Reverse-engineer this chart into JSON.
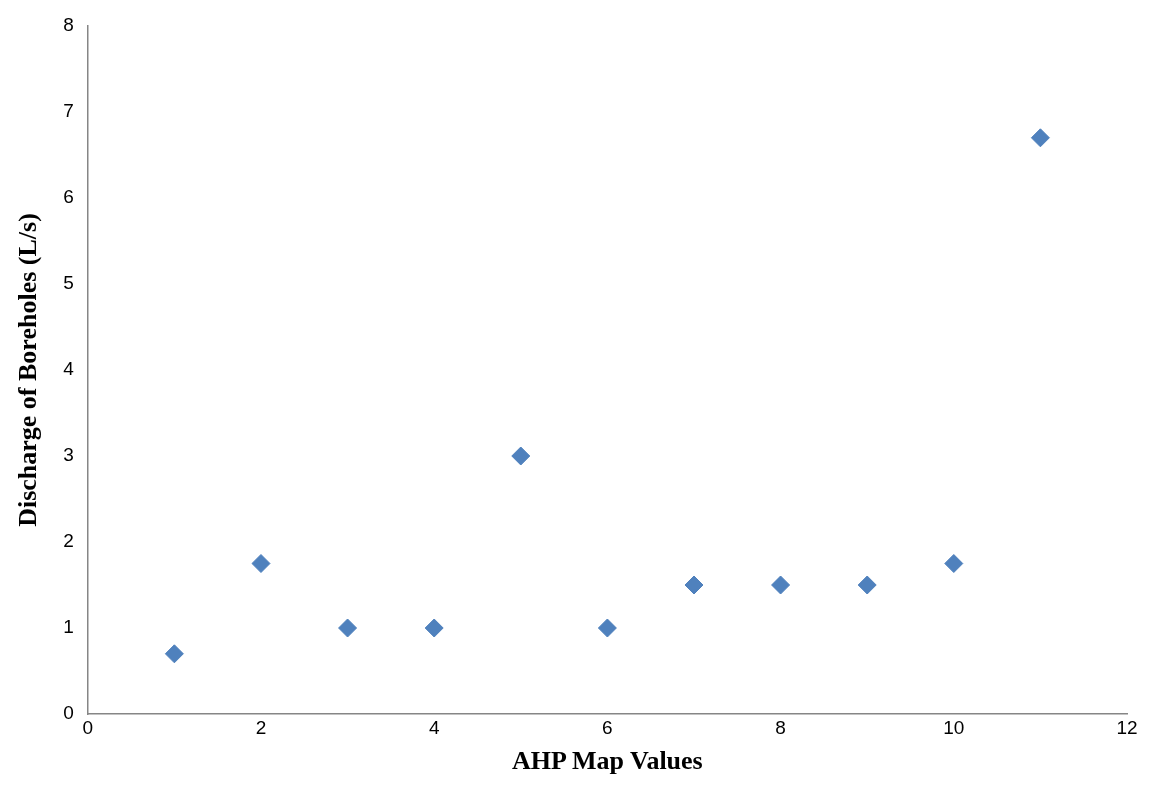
{
  "chart_data": {
    "type": "scatter",
    "xlabel": "AHP Map Values",
    "ylabel": "Discharge of Boreholes (L/s)",
    "x": [
      1,
      2,
      3,
      4,
      5,
      6,
      7,
      8,
      9,
      10,
      11
    ],
    "series": [
      {
        "color": "#4f81bd",
        "values": [
          0.7,
          1.75,
          1,
          1,
          3,
          1,
          1.5,
          1.5,
          1.5,
          1.75,
          6.7
        ]
      }
    ],
    "xlim": [
      0,
      12
    ],
    "xticks": [
      0,
      2,
      4,
      6,
      8,
      10,
      12
    ],
    "ylim": [
      0,
      8
    ],
    "yticks": [
      0,
      1,
      2,
      3,
      4,
      5,
      6,
      7,
      8
    ],
    "grid": false,
    "legend": false,
    "marker": "diamond"
  }
}
